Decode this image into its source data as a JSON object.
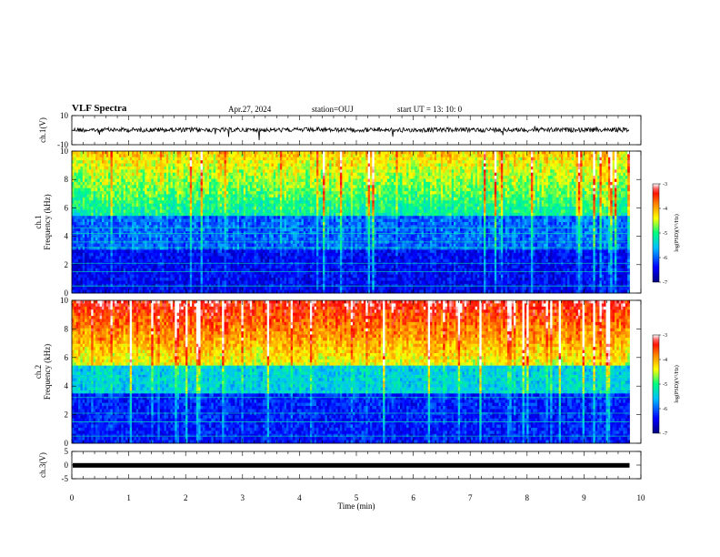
{
  "header": {
    "title": "VLF Spectra",
    "date": "Apr.27, 2024",
    "station": "station=OUJ",
    "start_ut": "start UT =  13: 10: 0"
  },
  "chart_data": [
    {
      "type": "line",
      "name": "ch1-waveform",
      "ylabel": "ch.1(V)",
      "ylim": [
        -10,
        10
      ],
      "yticks": [
        "10",
        "-10"
      ],
      "trace_level": 0.2,
      "color": "#000000"
    },
    {
      "type": "heatmap",
      "name": "ch1-spectrogram",
      "ylabel": "ch.1\nFrequency (kHz)",
      "ylim": [
        0,
        10
      ],
      "yticks": [
        "0",
        "2",
        "4",
        "6",
        "8",
        "10"
      ],
      "colorbar": {
        "label": "log(PSD)(V²/Hz)",
        "range": [
          -7,
          -3
        ],
        "ticks": [
          "-3",
          "-4",
          "-5",
          "-6",
          "-7"
        ]
      }
    },
    {
      "type": "heatmap",
      "name": "ch2-spectrogram",
      "ylabel": "ch.2\nFrequency (kHz)",
      "ylim": [
        0,
        10
      ],
      "yticks": [
        "0",
        "2",
        "4",
        "6",
        "8",
        "10"
      ],
      "colorbar": {
        "label": "log(PSD)(V²/Hz)",
        "range": [
          -7,
          -3
        ],
        "ticks": [
          "-3",
          "-4",
          "-5",
          "-6",
          "-7"
        ]
      }
    },
    {
      "type": "line",
      "name": "ch3-waveform",
      "ylabel": "ch.3(V)",
      "ylim": [
        -5,
        5
      ],
      "yticks": [
        "5",
        "0",
        "-5"
      ],
      "trace_level": -0.1,
      "color": "#000000"
    }
  ],
  "x_axis": {
    "label": "Time (min)",
    "range": [
      0,
      10
    ],
    "ticks": [
      "0",
      "1",
      "2",
      "3",
      "4",
      "5",
      "6",
      "7",
      "8",
      "9",
      "10"
    ],
    "data_end": 9.8
  },
  "colors": {
    "colormap": [
      "#000080",
      "#0000ff",
      "#00bfff",
      "#00ff80",
      "#ffff00",
      "#ff8000",
      "#ff0000",
      "#ffffff"
    ]
  }
}
